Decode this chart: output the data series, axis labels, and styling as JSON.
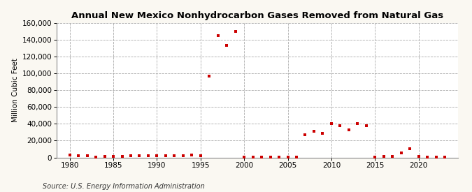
{
  "title": "Annual New Mexico Nonhydrocarbon Gases Removed from Natural Gas",
  "ylabel": "Million Cubic Feet",
  "source": "Source: U.S. Energy Information Administration",
  "background_color": "#faf8f2",
  "plot_background_color": "#ffffff",
  "marker_color": "#cc0000",
  "marker": "s",
  "marker_size": 3.5,
  "xlim": [
    1978.5,
    2024.5
  ],
  "ylim": [
    0,
    160000
  ],
  "yticks": [
    0,
    20000,
    40000,
    60000,
    80000,
    100000,
    120000,
    140000,
    160000
  ],
  "xticks": [
    1980,
    1985,
    1990,
    1995,
    2000,
    2005,
    2010,
    2015,
    2020
  ],
  "years": [
    1980,
    1981,
    1982,
    1983,
    1984,
    1985,
    1986,
    1987,
    1988,
    1989,
    1990,
    1991,
    1992,
    1993,
    1994,
    1995,
    1996,
    1997,
    1998,
    1999,
    2000,
    2001,
    2002,
    2003,
    2004,
    2005,
    2006,
    2007,
    2008,
    2009,
    2010,
    2011,
    2012,
    2013,
    2014,
    2015,
    2016,
    2017,
    2018,
    2019,
    2020,
    2021,
    2022,
    2023
  ],
  "values": [
    2500,
    2200,
    1800,
    800,
    1500,
    1200,
    1000,
    1700,
    2000,
    2100,
    2300,
    2000,
    2100,
    2200,
    3200,
    1800,
    97000,
    145000,
    133000,
    150000,
    400,
    400,
    400,
    400,
    400,
    400,
    400,
    27000,
    31000,
    29000,
    40000,
    38000,
    33000,
    40000,
    38000,
    800,
    1000,
    1500,
    5500,
    10000,
    1200,
    400,
    400,
    400
  ]
}
